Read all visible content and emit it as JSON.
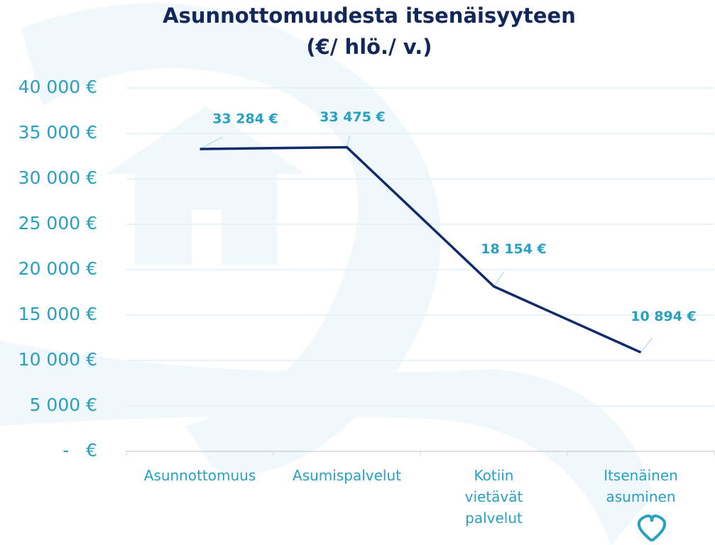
{
  "chart_data": {
    "type": "line",
    "title": "Asunnottomuudesta itsenäisyyteen",
    "subtitle": "(€/ hlö./ v.)",
    "categories": [
      "Asunnottomuus",
      "Asumispalvelut",
      "Kotiin vietävät palvelut",
      "Itsenäinen asuminen"
    ],
    "series": [
      {
        "color": "#0f2b6b",
        "values": [
          33284,
          33475,
          18154,
          10894
        ],
        "value_labels": [
          "33 284 €",
          "33 475 €",
          "18 154 €",
          "10 894 €"
        ]
      }
    ],
    "ylim": [
      0,
      40000
    ],
    "yticks": [
      {
        "value": 0,
        "label": "-   €"
      },
      {
        "value": 5000,
        "label": "5 000 €"
      },
      {
        "value": 10000,
        "label": "10 000 €"
      },
      {
        "value": 15000,
        "label": "15 000 €"
      },
      {
        "value": 20000,
        "label": "20 000 €"
      },
      {
        "value": 25000,
        "label": "25 000 €"
      },
      {
        "value": 30000,
        "label": "30 000 €"
      },
      {
        "value": 35000,
        "label": "35 000 €"
      },
      {
        "value": 40000,
        "label": "40 000 €"
      }
    ],
    "grid": true
  }
}
